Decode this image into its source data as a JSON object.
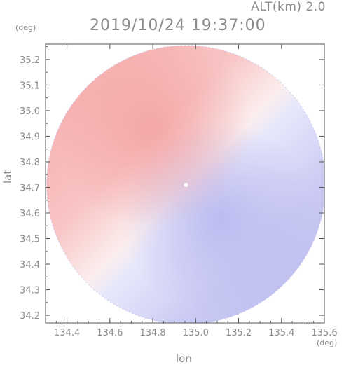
{
  "chart_data": {
    "type": "heatmap",
    "title_line1": "ALT(km)  2.0",
    "title_line2": "2019/10/24 19:37:00",
    "xlabel": "lon",
    "ylabel": "lat",
    "x_unit": "(deg)",
    "y_unit": "(deg)",
    "xlim": [
      134.3,
      135.6
    ],
    "ylim": [
      34.17,
      35.26
    ],
    "x_ticks": [
      "134.4",
      "134.6",
      "134.8",
      "135.0",
      "135.2",
      "135.4",
      "135.6"
    ],
    "y_ticks": [
      "34.2",
      "34.3",
      "34.4",
      "34.5",
      "34.6",
      "34.7",
      "34.8",
      "34.9",
      "35.0",
      "35.1",
      "35.2"
    ],
    "radar_center": {
      "lon": 134.955,
      "lat": 34.71
    },
    "radar_radius_deg_lon": 0.65,
    "field": "radial velocity (diverging red-blue)",
    "colors": {
      "positive": "#f49a9a",
      "negative": "#9a9af2",
      "neutral": "#ffffff",
      "axis": "#555555",
      "text": "#8a8a8a"
    },
    "grid": false
  }
}
